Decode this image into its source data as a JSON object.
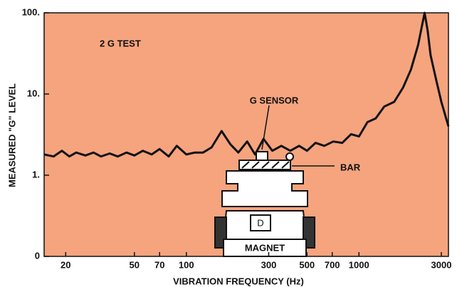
{
  "chart_data": {
    "type": "line",
    "title": "2 G TEST",
    "x_label": "VIBRATION FREQUENCY (Hz)",
    "y_label": "MEASURED \"G\" LEVEL",
    "x": [
      15,
      17,
      19,
      21,
      23,
      26,
      29,
      32,
      36,
      40,
      45,
      50,
      56,
      63,
      70,
      79,
      88,
      100,
      112,
      125,
      140,
      160,
      180,
      200,
      225,
      250,
      280,
      315,
      355,
      400,
      450,
      500,
      560,
      630,
      710,
      800,
      900,
      1000,
      1120,
      1250,
      1400,
      1600,
      1800,
      2000,
      2200,
      2400,
      2500,
      2600,
      2800,
      3000,
      3300
    ],
    "values": [
      1.8,
      1.7,
      2.0,
      1.7,
      1.9,
      1.75,
      1.9,
      1.7,
      1.85,
      1.7,
      1.9,
      1.75,
      2.0,
      1.8,
      2.1,
      1.7,
      2.3,
      1.8,
      1.9,
      1.9,
      2.2,
      3.5,
      2.4,
      1.9,
      2.6,
      1.8,
      2.8,
      2.0,
      2.3,
      2.0,
      2.3,
      2.0,
      2.5,
      2.3,
      2.6,
      2.5,
      3.2,
      3.0,
      4.5,
      5,
      7,
      8,
      12,
      20,
      40,
      100,
      60,
      30,
      15,
      8,
      4
    ],
    "color": "#111111",
    "x_scale": "log",
    "y_scale": "log",
    "xlim": [
      15,
      3300
    ],
    "ylim": [
      0.1,
      100
    ],
    "xticks": [
      20,
      50,
      70,
      100,
      300,
      500,
      700,
      1000,
      3000
    ],
    "yticks": [
      {
        "value": 100,
        "label": "100."
      },
      {
        "value": 10,
        "label": "10."
      },
      {
        "value": 1,
        "label": "1."
      },
      {
        "value": 0.1,
        "label": "0"
      }
    ],
    "annotations": [
      "G SENSOR",
      "BAR",
      "MAGNET",
      "D"
    ]
  }
}
